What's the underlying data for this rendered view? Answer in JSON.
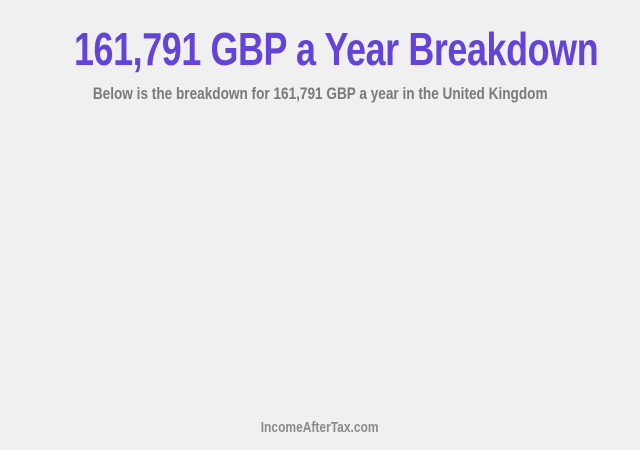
{
  "header": {
    "title": "161,791 GBP a Year Breakdown",
    "subtitle": "Below is the breakdown for 161,791 GBP a year in the United Kingdom"
  },
  "footer": {
    "site": "IncomeAfterTax.com"
  },
  "colors": {
    "title": "#6444d8",
    "subtitle": "#7a7a7a",
    "background": "#f0f0f0"
  }
}
